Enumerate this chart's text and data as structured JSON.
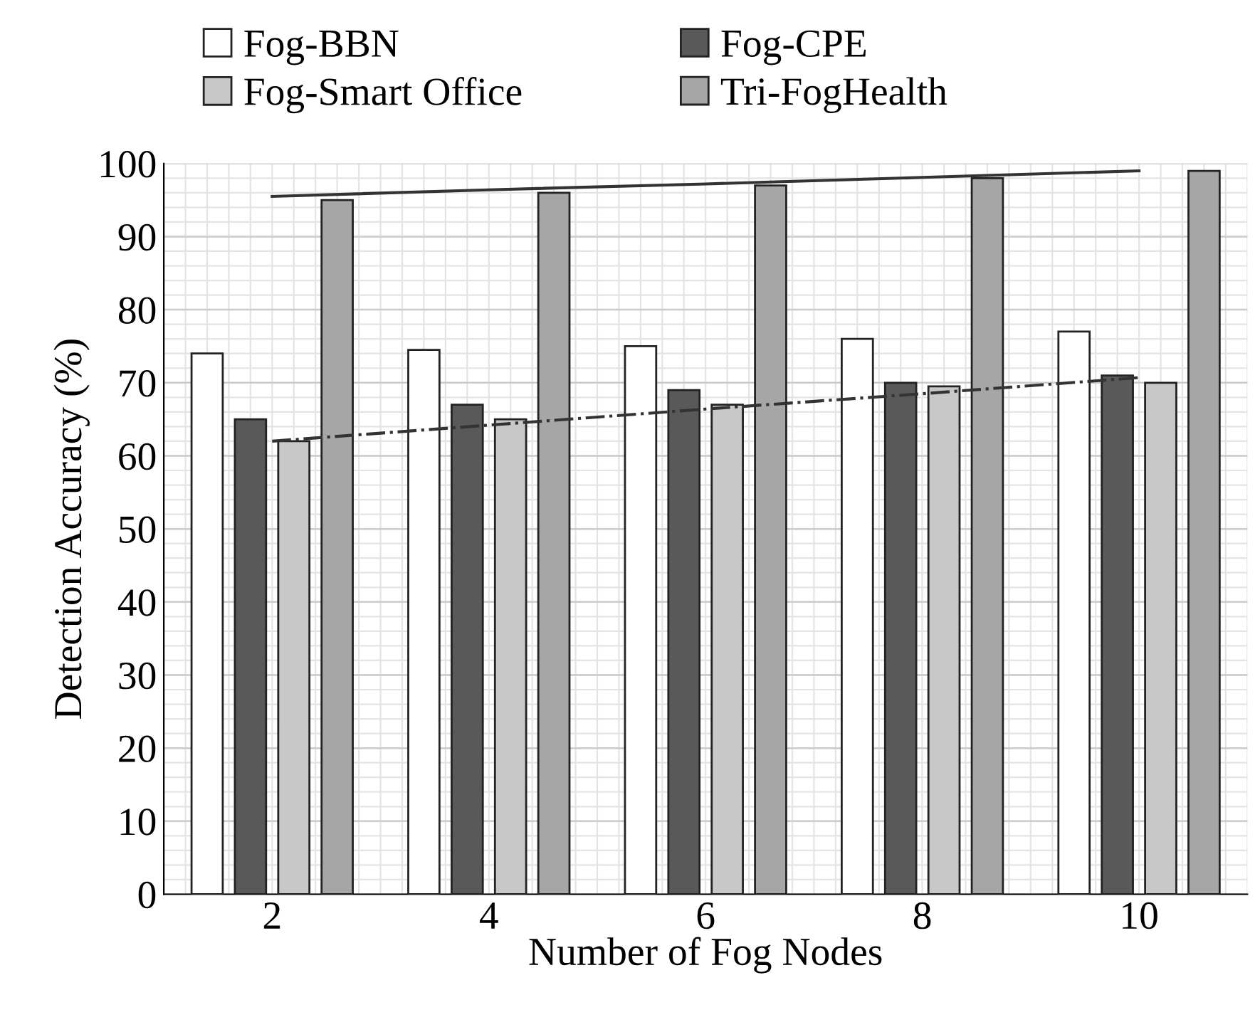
{
  "chart_data": {
    "type": "bar",
    "xlabel": "Number of Fog Nodes",
    "ylabel": "Detection Accuracy (%)",
    "categories": [
      "2",
      "4",
      "6",
      "8",
      "10"
    ],
    "series": [
      {
        "name": "Fog-BBN",
        "color": "#ffffff",
        "values": [
          74,
          74.5,
          75,
          76,
          77
        ]
      },
      {
        "name": "Fog-CPE",
        "color": "#595959",
        "values": [
          65,
          67,
          69,
          70,
          71
        ]
      },
      {
        "name": "Fog-Smart Office",
        "color": "#c8c8c8",
        "values": [
          62,
          65,
          67,
          69.5,
          70
        ]
      },
      {
        "name": "Tri-FogHealth",
        "color": "#a6a6a6",
        "values": [
          95,
          96,
          97,
          98,
          99
        ]
      },
      {
        "type": "line",
        "color": "#333333",
        "line_style": "solid",
        "values": [
          95.5,
          96.4,
          97.2,
          98.1,
          99
        ]
      },
      {
        "type": "line",
        "color": "#333333",
        "line_style": "dashdot",
        "values": [
          62,
          64.2,
          66.4,
          68.5,
          70.7
        ]
      }
    ],
    "ylim": [
      0,
      100
    ],
    "yticks": [
      0,
      10,
      20,
      30,
      40,
      50,
      60,
      70,
      80,
      90,
      100
    ],
    "grid": true,
    "legend": "top"
  }
}
